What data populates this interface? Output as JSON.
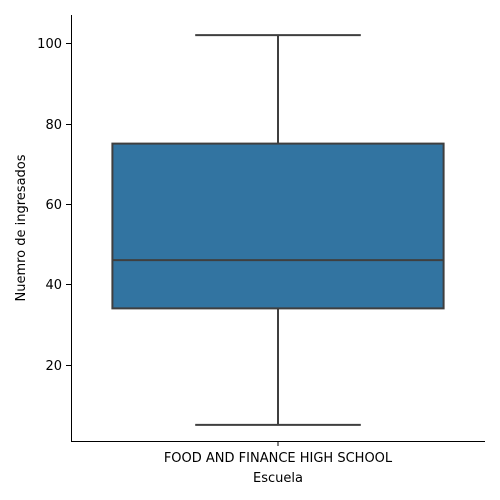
{
  "chart_data": {
    "type": "box",
    "title": "",
    "xlabel": "Escuela",
    "ylabel": "Nuemro de ingresados",
    "categories": [
      "FOOD AND FINANCE HIGH SCHOOL"
    ],
    "boxes": [
      {
        "category": "FOOD AND FINANCE HIGH SCHOOL",
        "whisker_low": 5,
        "q1": 34,
        "median": 46,
        "q3": 75,
        "whisker_high": 102
      }
    ],
    "ylim": [
      1,
      107
    ],
    "yticks": [
      20,
      40,
      60,
      80,
      100
    ],
    "grid": false,
    "colors": {
      "box_fill": "#3274a1",
      "line": "#3f3f3f"
    }
  }
}
